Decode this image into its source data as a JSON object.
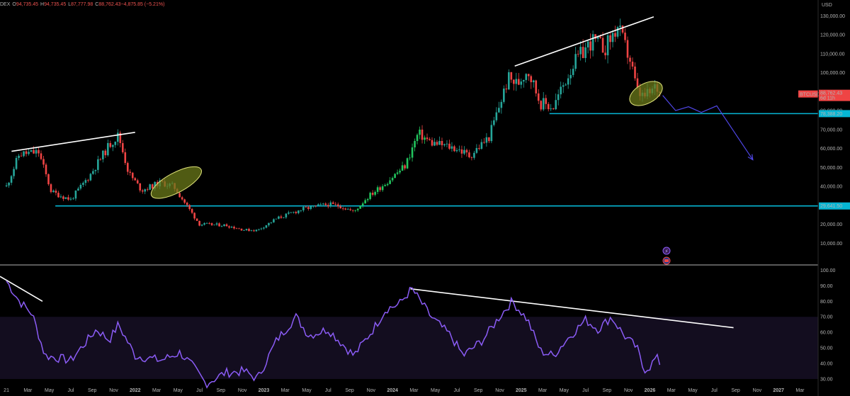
{
  "header": {
    "ohlc_parts": [
      {
        "key": "ticker_frag",
        "text": "DEX",
        "color": "#b4b4b4"
      },
      {
        "key": "o_label",
        "text": "O",
        "color": "#b4b4b4"
      },
      {
        "key": "o_value",
        "text": "94,735.45",
        "color": "#ef5350"
      },
      {
        "key": "h_label",
        "text": "H",
        "color": "#b4b4b4"
      },
      {
        "key": "h_value",
        "text": "94,735.45",
        "color": "#ef5350"
      },
      {
        "key": "l_label",
        "text": "L",
        "color": "#b4b4b4"
      },
      {
        "key": "l_value",
        "text": "87,777.98",
        "color": "#ef5350"
      },
      {
        "key": "c_label",
        "text": "C",
        "color": "#b4b4b4"
      },
      {
        "key": "c_value",
        "text": "88,762.43",
        "color": "#ef5350"
      },
      {
        "key": "change",
        "text": "−4,875.85 (−5.21%)",
        "color": "#ef5350"
      }
    ],
    "currency": "USD"
  },
  "colors": {
    "background": "#000000",
    "up": "#26a69a",
    "up_bright": "#22c55e",
    "down": "#ef4444",
    "support": "#06b6d4",
    "rsi": "#8b5cf6",
    "rsi_band": "#130d1f",
    "trendline": "#ffffff",
    "highlight_fill": "#6b7a1a",
    "highlight_stroke": "#e0e37a",
    "projection": "#4f46e5"
  },
  "chart_data": [
    {
      "type": "candlestick",
      "title": "",
      "ylim": [
        0,
        135000
      ],
      "y_ticks": [
        "10,000.00",
        "20,000.00",
        "30,000.00",
        "40,000.00",
        "50,000.00",
        "60,000.00",
        "70,000.00",
        "80,000.00",
        "90,000.00",
        "100,000.00",
        "110,000.00",
        "120,000.00",
        "130,000.00"
      ],
      "x_tick_labels": [
        "21",
        "Mar",
        "May",
        "Jul",
        "Sep",
        "Nov",
        "2022",
        "Mar",
        "May",
        "Jul",
        "Sep",
        "Nov",
        "2023",
        "Mar",
        "May",
        "Jul",
        "Sep",
        "Nov",
        "2024",
        "Mar",
        "May",
        "Jul",
        "Sep",
        "Nov",
        "2025",
        "Mar",
        "May",
        "Jul",
        "Sep",
        "Nov",
        "2026",
        "Mar",
        "May",
        "Jul",
        "Sep",
        "Nov",
        "2027",
        "Mar"
      ],
      "series": [
        {
          "name": "BTCUSD",
          "approx_close_path": [
            [
              2021.0,
              40000
            ],
            [
              2021.1,
              57000
            ],
            [
              2021.25,
              58000
            ],
            [
              2021.35,
              37000
            ],
            [
              2021.5,
              33000
            ],
            [
              2021.65,
              46000
            ],
            [
              2021.8,
              62000
            ],
            [
              2021.87,
              67000
            ],
            [
              2021.95,
              47000
            ],
            [
              2022.05,
              38000
            ],
            [
              2022.2,
              42000
            ],
            [
              2022.3,
              40000
            ],
            [
              2022.4,
              30000
            ],
            [
              2022.5,
              20000
            ],
            [
              2022.7,
              19500
            ],
            [
              2022.85,
              17000
            ],
            [
              2022.95,
              16800
            ],
            [
              2023.1,
              23000
            ],
            [
              2023.3,
              28000
            ],
            [
              2023.5,
              30500
            ],
            [
              2023.6,
              29500
            ],
            [
              2023.7,
              26500
            ],
            [
              2023.8,
              34000
            ],
            [
              2023.95,
              42000
            ],
            [
              2024.1,
              51000
            ],
            [
              2024.2,
              68000
            ],
            [
              2024.3,
              63000
            ],
            [
              2024.5,
              60000
            ],
            [
              2024.6,
              56000
            ],
            [
              2024.75,
              66000
            ],
            [
              2024.9,
              97000
            ],
            [
              2024.97,
              94000
            ],
            [
              2025.05,
              102000
            ],
            [
              2025.15,
              84000
            ],
            [
              2025.25,
              82000
            ],
            [
              2025.4,
              104000
            ],
            [
              2025.55,
              117000
            ],
            [
              2025.65,
              113000
            ],
            [
              2025.75,
              124000
            ],
            [
              2025.85,
              106000
            ],
            [
              2025.9,
              90000
            ],
            [
              2025.95,
              87000
            ],
            [
              2026.0,
              89000
            ],
            [
              2026.05,
              93000
            ],
            [
              2026.08,
              88762.43
            ]
          ]
        }
      ],
      "price_labels": [
        {
          "name": "BTCUSD",
          "value": 88762.43,
          "text": "88,762.43",
          "countdown": "6d 11h"
        },
        {
          "name": "support_high",
          "value": 78388.2,
          "text": "78,388.20"
        },
        {
          "name": "support_low",
          "value": 29641.5,
          "text": "29,641.50"
        }
      ],
      "horizontal_levels": [
        78388.2,
        29641.5
      ],
      "projection_path": [
        [
          2026.1,
          88000
        ],
        [
          2026.2,
          80000
        ],
        [
          2026.3,
          82000
        ],
        [
          2026.4,
          79000
        ],
        [
          2026.52,
          82500
        ],
        [
          2026.8,
          54000
        ]
      ]
    },
    {
      "type": "line",
      "title": "",
      "ylim": [
        25,
        102
      ],
      "y_ticks": [
        "30.00",
        "40.00",
        "50.00",
        "60.00",
        "70.00",
        "80.00",
        "90.00",
        "100.00"
      ],
      "band": [
        30,
        70
      ],
      "series": [
        {
          "name": "",
          "approx_path": [
            [
              2021.0,
              93
            ],
            [
              2021.1,
              80
            ],
            [
              2021.2,
              72
            ],
            [
              2021.3,
              45
            ],
            [
              2021.5,
              42
            ],
            [
              2021.7,
              62
            ],
            [
              2021.8,
              55
            ],
            [
              2021.87,
              65
            ],
            [
              2022.0,
              45
            ],
            [
              2022.2,
              42
            ],
            [
              2022.35,
              47
            ],
            [
              2022.45,
              38
            ],
            [
              2022.55,
              27
            ],
            [
              2022.7,
              34
            ],
            [
              2022.85,
              35
            ],
            [
              2022.95,
              30
            ],
            [
              2023.1,
              55
            ],
            [
              2023.25,
              70
            ],
            [
              2023.35,
              58
            ],
            [
              2023.5,
              62
            ],
            [
              2023.7,
              45
            ],
            [
              2023.85,
              62
            ],
            [
              2023.95,
              75
            ],
            [
              2024.05,
              78
            ],
            [
              2024.15,
              88
            ],
            [
              2024.3,
              70
            ],
            [
              2024.45,
              58
            ],
            [
              2024.55,
              45
            ],
            [
              2024.7,
              55
            ],
            [
              2024.85,
              72
            ],
            [
              2024.93,
              80
            ],
            [
              2025.05,
              68
            ],
            [
              2025.15,
              48
            ],
            [
              2025.25,
              45
            ],
            [
              2025.35,
              55
            ],
            [
              2025.5,
              68
            ],
            [
              2025.6,
              62
            ],
            [
              2025.7,
              70
            ],
            [
              2025.8,
              58
            ],
            [
              2025.9,
              50
            ],
            [
              2025.95,
              36
            ],
            [
              2026.0,
              38
            ],
            [
              2026.05,
              44
            ],
            [
              2026.08,
              40
            ]
          ]
        }
      ]
    }
  ],
  "annotations": {
    "rsi_trendline": "falling line connecting RSI peaks",
    "price_trendlines": "rising lines across 2021 and 2025 highs"
  }
}
